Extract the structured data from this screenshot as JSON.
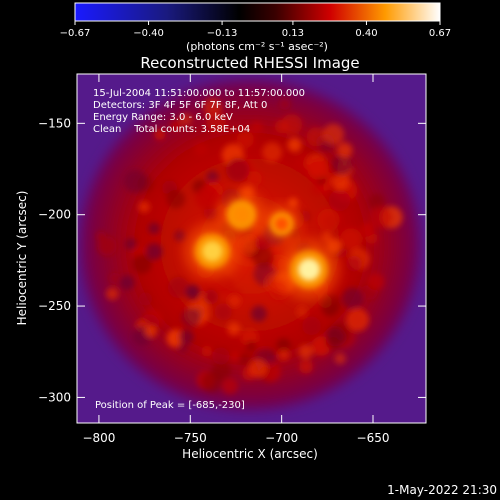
{
  "chart_data": {
    "type": "heatmap",
    "title": "Reconstructed RHESSI Image",
    "colorbar": {
      "ticks": [
        "-0.67",
        "-0.40",
        "-0.13",
        "0.13",
        "0.40",
        "0.67"
      ],
      "range": [
        -0.67,
        0.67
      ],
      "unit_label": "(photons cm⁻² s⁻¹ asec⁻²)",
      "colormap": "blue-black-red-yellow-white"
    },
    "xlabel": "Heliocentric X (arcsec)",
    "ylabel": "Heliocentric Y (arcsec)",
    "xlim": [
      -812,
      -621
    ],
    "ylim": [
      -314,
      -123
    ],
    "x_ticks": [
      {
        "value": -800,
        "label": "−800"
      },
      {
        "value": -750,
        "label": "−750"
      },
      {
        "value": -700,
        "label": "−700"
      },
      {
        "value": -650,
        "label": "−650"
      }
    ],
    "y_ticks": [
      {
        "value": -150,
        "label": "−150"
      },
      {
        "value": -200,
        "label": "−200"
      },
      {
        "value": -250,
        "label": "−250"
      },
      {
        "value": -300,
        "label": "−300"
      }
    ],
    "annotations": [
      "15-Jul-2004 11:51:00.000 to 11:57:00.000",
      "Detectors: 3F 4F 5F 6F 7F 8F, Att 0",
      "Energy Range: 3.0 - 6.0 keV",
      "Clean    Total counts: 3.58E+04"
    ],
    "peak_label": "Position of Peak = [-685,-230]",
    "sources": [
      {
        "x": -738,
        "y": -220,
        "intensity": 0.6
      },
      {
        "x": -685,
        "y": -230,
        "intensity": 0.67
      },
      {
        "x": -722,
        "y": -200,
        "intensity": 0.45
      },
      {
        "x": -700,
        "y": -205,
        "intensity": 0.3
      }
    ],
    "background_colors": {
      "outer": "#551a8b",
      "inner": "#b00000"
    }
  },
  "footer_date": "1-May-2022 21:30"
}
